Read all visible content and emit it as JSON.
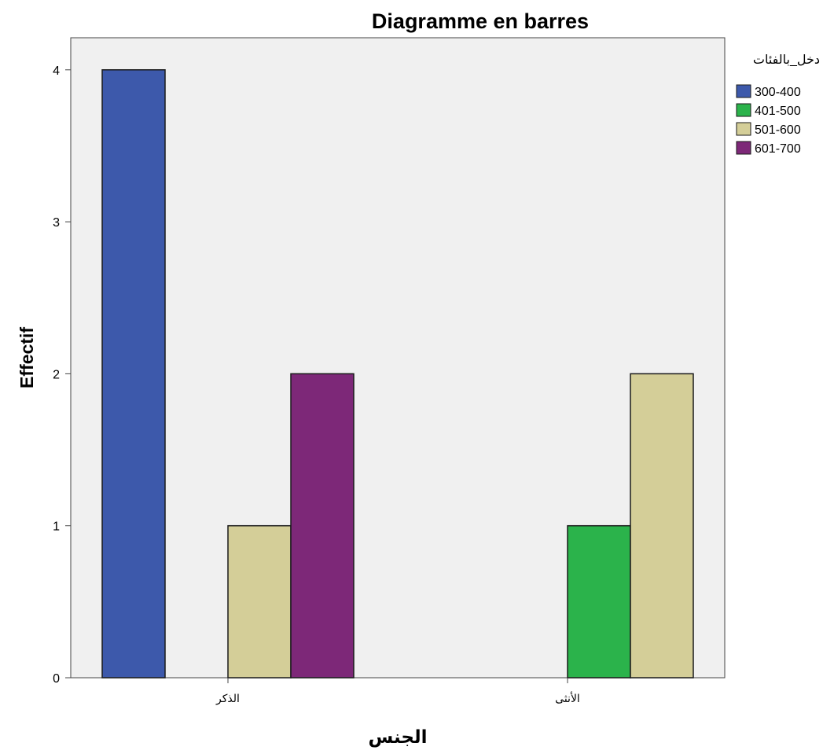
{
  "chart_data": {
    "type": "bar",
    "title": "Diagramme en barres",
    "xlabel": "الجنس",
    "ylabel": "Effectif",
    "categories": [
      "الذكر",
      "الأنثى"
    ],
    "legend_title": "دخل_بالفئات",
    "legend_position": "right",
    "ylim": [
      0,
      4.15
    ],
    "yticks": [
      0,
      1,
      2,
      3,
      4
    ],
    "grid": false,
    "plot_background": "#f0f0f0",
    "series": [
      {
        "name": "300-400",
        "color": "#3d59ab",
        "values": [
          4,
          0
        ]
      },
      {
        "name": "401-500",
        "color": "#2bb34b",
        "values": [
          0,
          1
        ]
      },
      {
        "name": "501-600",
        "color": "#d4ce98",
        "values": [
          1,
          2
        ]
      },
      {
        "name": "601-700",
        "color": "#7d2878",
        "values": [
          2,
          0
        ]
      }
    ]
  }
}
